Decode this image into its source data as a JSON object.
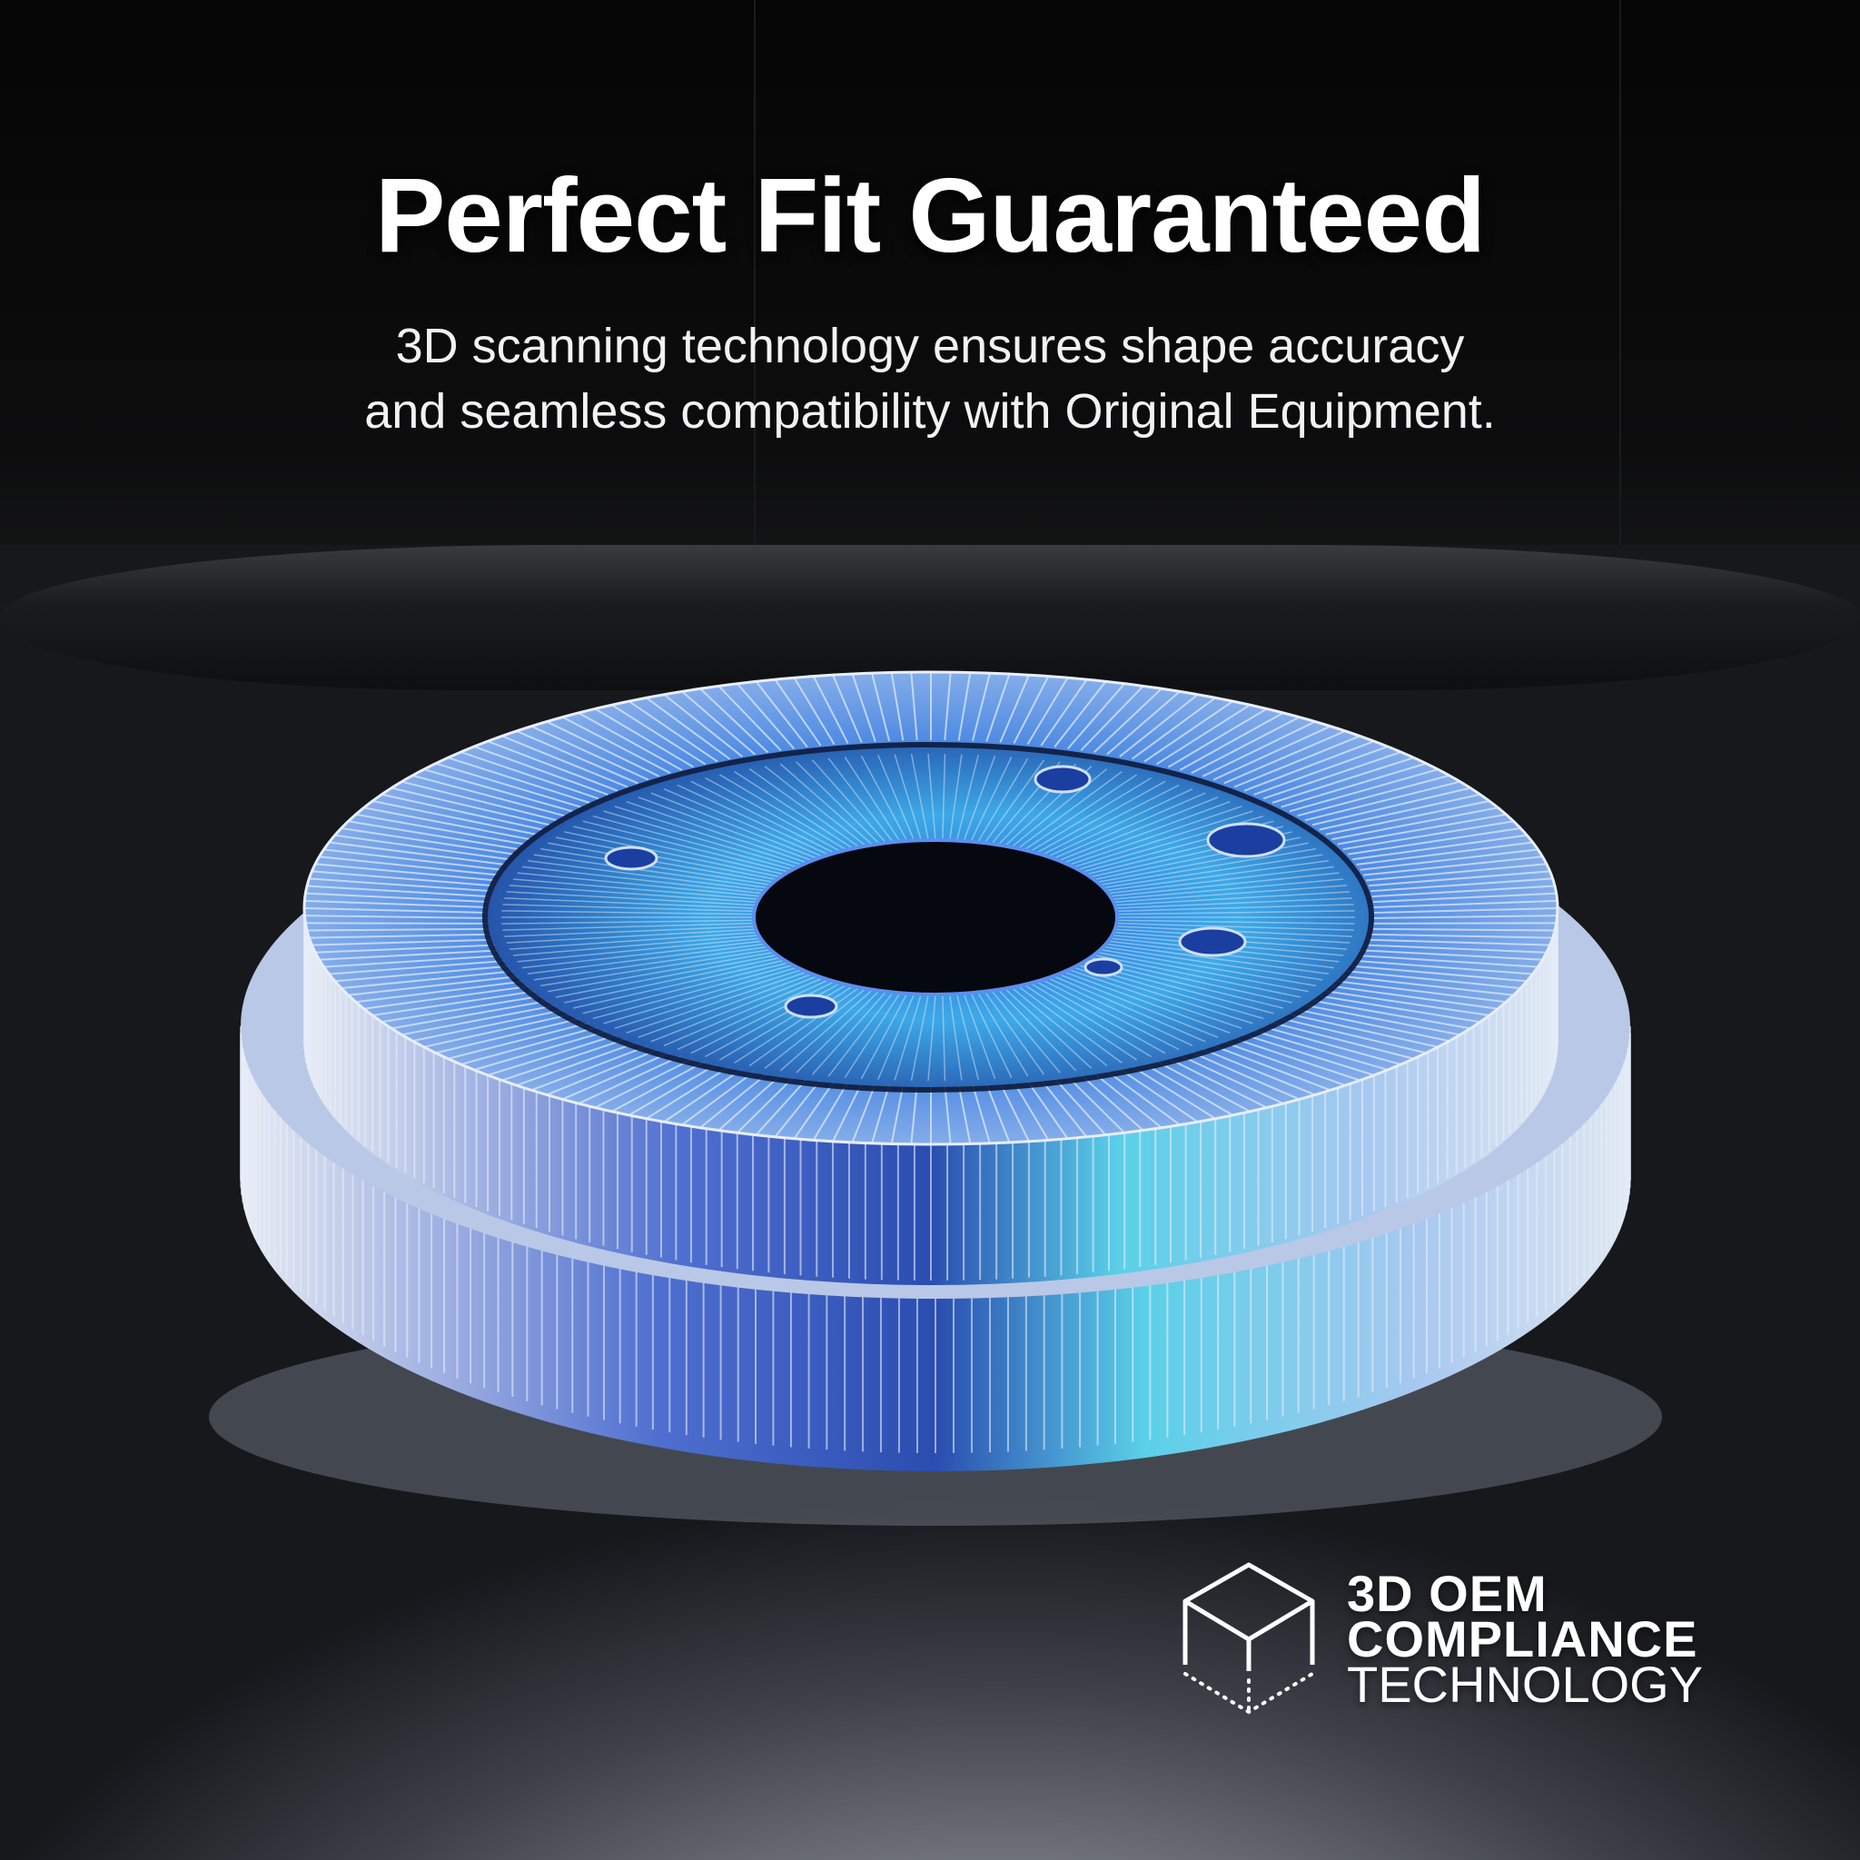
{
  "headline": "Perfect Fit Guaranteed",
  "subtitle": {
    "line1": "3D scanning technology ensures shape accuracy",
    "line2": "and seamless compatibility with Original Equipment."
  },
  "badge": {
    "icon": "wireframe-cube-icon",
    "line1": "3D OEM",
    "line2": "COMPLIANCE",
    "line3": "TECHNOLOGY"
  },
  "product": {
    "name": "brake-drum-wireframe",
    "colors": {
      "accent": "#3aa0e8",
      "wire": "#e6eefc",
      "deep": "#1f3f9a"
    }
  }
}
